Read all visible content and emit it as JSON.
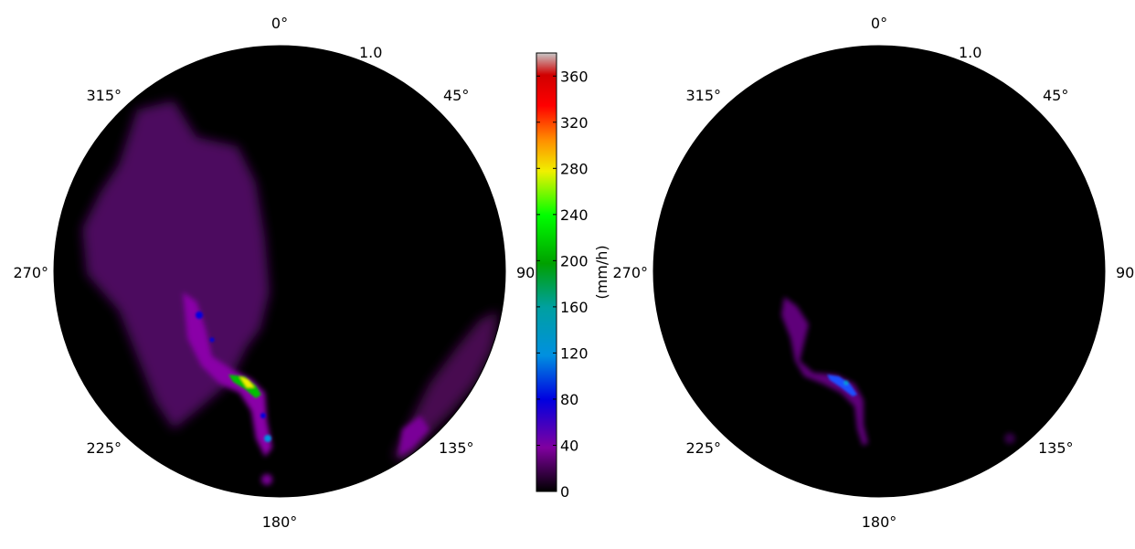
{
  "chart_data": [
    {
      "type": "heatmap",
      "projection": "polar",
      "theta_labels": [
        "0°",
        "45°",
        "90",
        "135°",
        "180°",
        "225°",
        "270°",
        "315°"
      ],
      "radial_labels": [
        "1.0"
      ],
      "background_color": "#000000",
      "features": [
        {
          "kind": "diffuse-precipitation",
          "color": "#6a0a80"
        },
        {
          "kind": "convective-band",
          "color": "#7f00a0"
        },
        {
          "kind": "intense-cores",
          "color": "#00c000"
        }
      ]
    },
    {
      "type": "heatmap",
      "projection": "polar",
      "theta_labels": [
        "0°",
        "45°",
        "90",
        "135°",
        "180°",
        "225°",
        "270°",
        "315°"
      ],
      "radial_labels": [
        "1.0"
      ],
      "background_color": "#000000",
      "features": [
        {
          "kind": "narrow-convective-band",
          "color": "#7f00a0"
        },
        {
          "kind": "weak-cores",
          "color": "#1e90ff"
        }
      ]
    }
  ],
  "colorbar": {
    "label": "(mm/h)",
    "range": [
      0,
      380
    ],
    "ticks": [
      "0",
      "40",
      "80",
      "120",
      "160",
      "200",
      "240",
      "280",
      "320",
      "360"
    ],
    "colors": [
      "#000000",
      "#8000a0",
      "#0000e0",
      "#0090e0",
      "#00a0a0",
      "#00a000",
      "#00ff00",
      "#f0f000",
      "#ff9000",
      "#ff0000",
      "#c8c8c8"
    ]
  }
}
